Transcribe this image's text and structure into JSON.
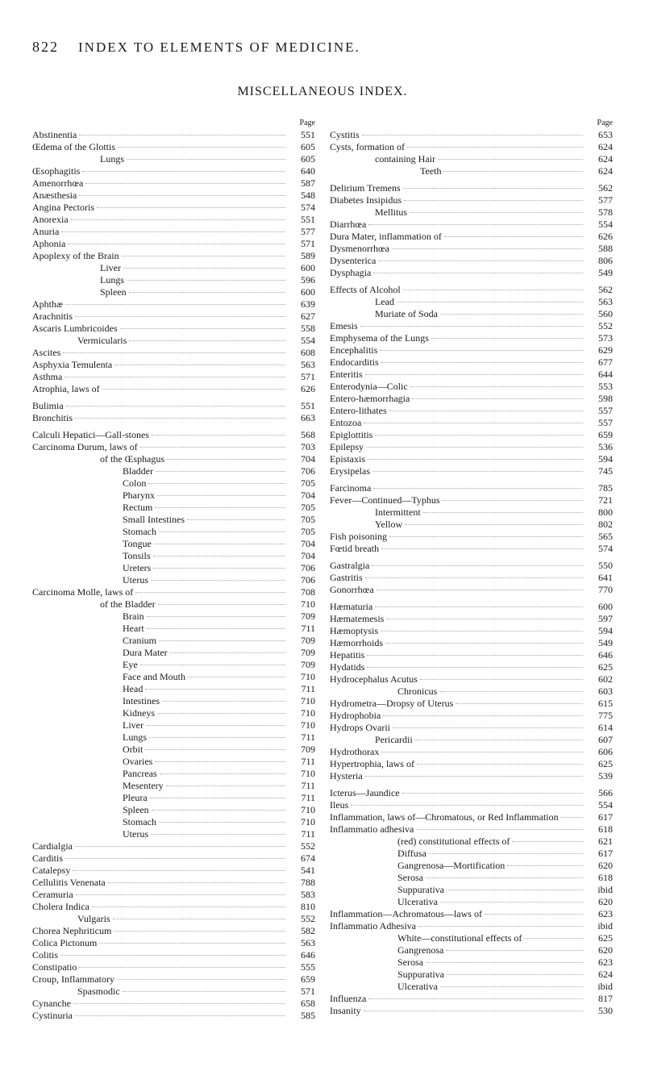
{
  "header": {
    "page_number": "822",
    "running_title": "INDEX TO ELEMENTS OF MEDICINE."
  },
  "section_title": "MISCELLANEOUS INDEX.",
  "page_label": "Page",
  "left": [
    {
      "label": "Abstinentia",
      "indent": 0,
      "page": "551"
    },
    {
      "label": "Œdema of the Glottis",
      "indent": 0,
      "page": "605"
    },
    {
      "label": "Lungs",
      "indent": 3,
      "page": "605"
    },
    {
      "label": "Œsophagitis",
      "indent": 0,
      "page": "640"
    },
    {
      "label": "Amenorrhœa",
      "indent": 0,
      "page": "587"
    },
    {
      "label": "Anæsthesia",
      "indent": 0,
      "page": "548"
    },
    {
      "label": "Angina Pectoris",
      "indent": 0,
      "page": "574"
    },
    {
      "label": "Anorexia",
      "indent": 0,
      "page": "551"
    },
    {
      "label": "Anuria",
      "indent": 0,
      "page": "577"
    },
    {
      "label": "Aphonia",
      "indent": 0,
      "page": "571"
    },
    {
      "label": "Apoplexy of the Brain",
      "indent": 0,
      "page": "589"
    },
    {
      "label": "Liver",
      "indent": 3,
      "page": "600"
    },
    {
      "label": "Lungs",
      "indent": 3,
      "page": "596"
    },
    {
      "label": "Spleen",
      "indent": 3,
      "page": "600"
    },
    {
      "label": "Aphthæ",
      "indent": 0,
      "page": "639"
    },
    {
      "label": "Arachnitis",
      "indent": 0,
      "page": "627"
    },
    {
      "label": "Ascaris Lumbricoides",
      "indent": 0,
      "page": "558"
    },
    {
      "label": "Vermicularis",
      "indent": 2,
      "page": "554"
    },
    {
      "label": "Ascites",
      "indent": 0,
      "page": "608"
    },
    {
      "label": "Asphyxia Temulenta",
      "indent": 0,
      "page": "563"
    },
    {
      "label": "Asthma",
      "indent": 0,
      "page": "571"
    },
    {
      "label": "Atrophia, laws of",
      "indent": 0,
      "page": "626"
    },
    {
      "gap": true
    },
    {
      "label": "Bulimia",
      "indent": 0,
      "page": "551"
    },
    {
      "label": "Bronchitis",
      "indent": 0,
      "page": "663"
    },
    {
      "gap": true
    },
    {
      "label": "Calculi Hepatici—Gall-stones",
      "indent": 0,
      "page": "568"
    },
    {
      "label": "Carcinoma Durum, laws of",
      "indent": 0,
      "page": "703"
    },
    {
      "label": "of the Œsphagus",
      "indent": 3,
      "page": "704"
    },
    {
      "label": "Bladder",
      "indent": 4,
      "page": "706"
    },
    {
      "label": "Colon",
      "indent": 4,
      "page": "705"
    },
    {
      "label": "Pharynx",
      "indent": 4,
      "page": "704"
    },
    {
      "label": "Rectum",
      "indent": 4,
      "page": "705"
    },
    {
      "label": "Small Intestines",
      "indent": 4,
      "page": "705"
    },
    {
      "label": "Stomach",
      "indent": 4,
      "page": "705"
    },
    {
      "label": "Tongue",
      "indent": 4,
      "page": "704"
    },
    {
      "label": "Tonsils",
      "indent": 4,
      "page": "704"
    },
    {
      "label": "Ureters",
      "indent": 4,
      "page": "706"
    },
    {
      "label": "Uterus",
      "indent": 4,
      "page": "706"
    },
    {
      "label": "Carcinoma Molle, laws of",
      "indent": 0,
      "page": "708"
    },
    {
      "label": "of the Bladder",
      "indent": 3,
      "page": "710"
    },
    {
      "label": "Brain",
      "indent": 4,
      "page": "709"
    },
    {
      "label": "Heart",
      "indent": 4,
      "page": "711"
    },
    {
      "label": "Cranium",
      "indent": 4,
      "page": "709"
    },
    {
      "label": "Dura Mater",
      "indent": 4,
      "page": "709"
    },
    {
      "label": "Eye",
      "indent": 4,
      "page": "709"
    },
    {
      "label": "Face and Mouth",
      "indent": 4,
      "page": "710"
    },
    {
      "label": "Head",
      "indent": 4,
      "page": "711"
    },
    {
      "label": "Intestines",
      "indent": 4,
      "page": "710"
    },
    {
      "label": "Kidneys",
      "indent": 4,
      "page": "710"
    },
    {
      "label": "Liver",
      "indent": 4,
      "page": "710"
    },
    {
      "label": "Lungs",
      "indent": 4,
      "page": "711"
    },
    {
      "label": "Orbit",
      "indent": 4,
      "page": "709"
    },
    {
      "label": "Ovaries",
      "indent": 4,
      "page": "711"
    },
    {
      "label": "Pancreas",
      "indent": 4,
      "page": "710"
    },
    {
      "label": "Mesentery",
      "indent": 4,
      "page": "711"
    },
    {
      "label": "Pleura",
      "indent": 4,
      "page": "711"
    },
    {
      "label": "Spleen",
      "indent": 4,
      "page": "710"
    },
    {
      "label": "Stomach",
      "indent": 4,
      "page": "710"
    },
    {
      "label": "Uterus",
      "indent": 4,
      "page": "711"
    },
    {
      "label": "Cardialgia",
      "indent": 0,
      "page": "552"
    },
    {
      "label": "Carditis",
      "indent": 0,
      "page": "674"
    },
    {
      "label": "Catalepsy",
      "indent": 0,
      "page": "541"
    },
    {
      "label": "Cellulitis Venenata",
      "indent": 0,
      "page": "788"
    },
    {
      "label": "Ceramuria",
      "indent": 0,
      "page": "583"
    },
    {
      "label": "Cholera Indica",
      "indent": 0,
      "page": "810"
    },
    {
      "label": "Vulgaris",
      "indent": 2,
      "page": "552"
    },
    {
      "label": "Chorea Nephriticum",
      "indent": 0,
      "page": "582"
    },
    {
      "label": "Colica Pictonum",
      "indent": 0,
      "page": "563"
    },
    {
      "label": "Colitis",
      "indent": 0,
      "page": "646"
    },
    {
      "label": "Constipatio",
      "indent": 0,
      "page": "555"
    },
    {
      "label": "Croup, Inflammatory",
      "indent": 0,
      "page": "659"
    },
    {
      "label": "Spasmodic",
      "indent": 2,
      "page": "571"
    },
    {
      "label": "Cynanche",
      "indent": 0,
      "page": "658"
    },
    {
      "label": "Cystinuria",
      "indent": 0,
      "page": "585"
    }
  ],
  "right": [
    {
      "label": "Cystitis",
      "indent": 0,
      "page": "653"
    },
    {
      "label": "Cysts, formation of",
      "indent": 0,
      "page": "624"
    },
    {
      "label": "containing Hair",
      "indent": 2,
      "page": "624"
    },
    {
      "label": "Teeth",
      "indent": 4,
      "page": "624"
    },
    {
      "gap": true
    },
    {
      "label": "Delirium Tremens",
      "indent": 0,
      "page": "562"
    },
    {
      "label": "Diabetes Insipidus",
      "indent": 0,
      "page": "577"
    },
    {
      "label": "Mellitus",
      "indent": 2,
      "page": "578"
    },
    {
      "label": "Diarrhœa",
      "indent": 0,
      "page": "554"
    },
    {
      "label": "Dura Mater, inflammation of",
      "indent": 0,
      "page": "626"
    },
    {
      "label": "Dysmenorrhœa",
      "indent": 0,
      "page": "588"
    },
    {
      "label": "Dysenterica",
      "indent": 0,
      "page": "806"
    },
    {
      "label": "Dysphagia",
      "indent": 0,
      "page": "549"
    },
    {
      "gap": true
    },
    {
      "label": "Effects of Alcohol",
      "indent": 0,
      "page": "562"
    },
    {
      "label": "Lead",
      "indent": 2,
      "page": "563"
    },
    {
      "label": "Muriate of Soda",
      "indent": 2,
      "page": "560"
    },
    {
      "label": "Emesis",
      "indent": 0,
      "page": "552"
    },
    {
      "label": "Emphysema of the Lungs",
      "indent": 0,
      "page": "573"
    },
    {
      "label": "Encephalitis",
      "indent": 0,
      "page": "629"
    },
    {
      "label": "Endocarditis",
      "indent": 0,
      "page": "677"
    },
    {
      "label": "Enteritis",
      "indent": 0,
      "page": "644"
    },
    {
      "label": "Enterodynia—Colic",
      "indent": 0,
      "page": "553"
    },
    {
      "label": "Entero-hæmorrhagia",
      "indent": 0,
      "page": "598"
    },
    {
      "label": "Entero-lithates",
      "indent": 0,
      "page": "557"
    },
    {
      "label": "Entozoa",
      "indent": 0,
      "page": "557"
    },
    {
      "label": "Epiglottitis",
      "indent": 0,
      "page": "659"
    },
    {
      "label": "Epilepsy",
      "indent": 0,
      "page": "536"
    },
    {
      "label": "Epistaxis",
      "indent": 0,
      "page": "594"
    },
    {
      "label": "Erysipelas",
      "indent": 0,
      "page": "745"
    },
    {
      "gap": true
    },
    {
      "label": "Farcinoma",
      "indent": 0,
      "page": "785"
    },
    {
      "label": "Fever—Continued—Typhus",
      "indent": 0,
      "page": "721"
    },
    {
      "label": "Intermittent",
      "indent": 2,
      "page": "800"
    },
    {
      "label": "Yellow",
      "indent": 2,
      "page": "802"
    },
    {
      "label": "Fish poisoning",
      "indent": 0,
      "page": "565"
    },
    {
      "label": "Fœtid breath",
      "indent": 0,
      "page": "574"
    },
    {
      "gap": true
    },
    {
      "label": "Gastralgia",
      "indent": 0,
      "page": "550"
    },
    {
      "label": "Gastritis",
      "indent": 0,
      "page": "641"
    },
    {
      "label": "Gonorrhœa",
      "indent": 0,
      "page": "770"
    },
    {
      "gap": true
    },
    {
      "label": "Hæmaturia",
      "indent": 0,
      "page": "600"
    },
    {
      "label": "Hæmatemesis",
      "indent": 0,
      "page": "597"
    },
    {
      "label": "Hæmoptysis",
      "indent": 0,
      "page": "594"
    },
    {
      "label": "Hæmorrhoids",
      "indent": 0,
      "page": "549"
    },
    {
      "label": "Hepatitis",
      "indent": 0,
      "page": "646"
    },
    {
      "label": "Hydatids",
      "indent": 0,
      "page": "625"
    },
    {
      "label": "Hydrocephalus Acutus",
      "indent": 0,
      "page": "602"
    },
    {
      "label": "Chronicus",
      "indent": 3,
      "page": "603"
    },
    {
      "label": "Hydrometra—Dropsy of Uterus",
      "indent": 0,
      "page": "615"
    },
    {
      "label": "Hydrophobia",
      "indent": 0,
      "page": "775"
    },
    {
      "label": "Hydrops Ovarii",
      "indent": 0,
      "page": "614"
    },
    {
      "label": "Pericardii",
      "indent": 2,
      "page": "607"
    },
    {
      "label": "Hydrothorax",
      "indent": 0,
      "page": "606"
    },
    {
      "label": "Hypertrophia, laws of",
      "indent": 0,
      "page": "625"
    },
    {
      "label": "Hysteria",
      "indent": 0,
      "page": "539"
    },
    {
      "gap": true
    },
    {
      "label": "Icterus—Jaundice",
      "indent": 0,
      "page": "566"
    },
    {
      "label": "Ileus",
      "indent": 0,
      "page": "554"
    },
    {
      "label": "Inflammation, laws of—Chromatous, or Red Inflammation",
      "indent": 0,
      "page": "617"
    },
    {
      "label": "Inflammatio adhesiva",
      "indent": 0,
      "page": "618"
    },
    {
      "label": "(red) constitutional effects of",
      "indent": 3,
      "page": "621"
    },
    {
      "label": "Diffusa",
      "indent": 3,
      "page": "617"
    },
    {
      "label": "Gangrenosa—Mortification",
      "indent": 3,
      "page": "620"
    },
    {
      "label": "Serosa",
      "indent": 3,
      "page": "618"
    },
    {
      "label": "Suppurativa",
      "indent": 3,
      "page": "ibid"
    },
    {
      "label": "Ulcerativa",
      "indent": 3,
      "page": "620"
    },
    {
      "label": "Inflammation—Achromatous—laws of",
      "indent": 0,
      "page": "623"
    },
    {
      "label": "Inflammatio Adhesiva",
      "indent": 0,
      "page": "ibid"
    },
    {
      "label": "White—constitutional effects of",
      "indent": 3,
      "page": "625"
    },
    {
      "label": "Gangrenosa",
      "indent": 3,
      "page": "620"
    },
    {
      "label": "Serosa",
      "indent": 3,
      "page": "623"
    },
    {
      "label": "Suppurativa",
      "indent": 3,
      "page": "624"
    },
    {
      "label": "Ulcerativa",
      "indent": 3,
      "page": "ibid"
    },
    {
      "label": "Influenza",
      "indent": 0,
      "page": "817"
    },
    {
      "label": "Insanity",
      "indent": 0,
      "page": "530"
    }
  ]
}
